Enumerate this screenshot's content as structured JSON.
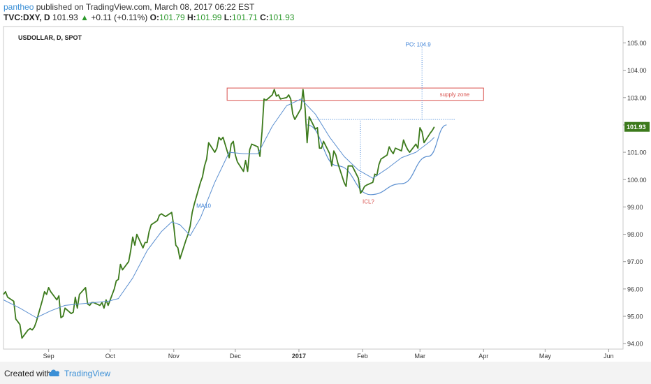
{
  "header": {
    "user": "pantheo",
    "published": "published on TradingView.com, March 08, 2017 06:22 EST",
    "symbol": "TVC:DXY, D",
    "price": "101.93",
    "change": "+0.11 (+0.11%)",
    "o_label": "O:",
    "o_value": "101.79",
    "h_label": "H:",
    "h_value": "101.99",
    "l_label": "L:",
    "l_value": "101.71",
    "c_label": "C:",
    "c_value": "101.93"
  },
  "footer": {
    "created": "Created with",
    "brand": "TradingView"
  },
  "colors": {
    "price_line": "#3c7a1c",
    "ma_line": "#5b8fd0",
    "supply": "#d9534f",
    "label_blue": "#3a7fd6",
    "last_price_bg": "#3c7a1c"
  },
  "chart_data": {
    "type": "line",
    "title": "USDOLLAR, D, SPOT",
    "ylim": [
      93.8,
      105.6
    ],
    "y_ticks": [
      94,
      95,
      96,
      97,
      98,
      99,
      100,
      101,
      102,
      103,
      104,
      105
    ],
    "y_tick_labels": [
      "94.00",
      "95.00",
      "96.00",
      "97.00",
      "98.00",
      "99.00",
      "100.00",
      "101.00",
      "102.00",
      "103.00",
      "104.00",
      "105.00"
    ],
    "x_domain": [
      "2016-08-10",
      "2017-06-08"
    ],
    "x_ticks": [
      {
        "date": "2016-09-01",
        "label": "Sep",
        "bold": false
      },
      {
        "date": "2016-10-01",
        "label": "Oct",
        "bold": false
      },
      {
        "date": "2016-11-01",
        "label": "Nov",
        "bold": false
      },
      {
        "date": "2016-12-01",
        "label": "Dec",
        "bold": false
      },
      {
        "date": "2017-01-01",
        "label": "2017",
        "bold": true
      },
      {
        "date": "2017-02-01",
        "label": "Feb",
        "bold": false
      },
      {
        "date": "2017-03-01",
        "label": "Mar",
        "bold": false
      },
      {
        "date": "2017-04-01",
        "label": "Apr",
        "bold": false
      },
      {
        "date": "2017-05-01",
        "label": "May",
        "bold": false
      },
      {
        "date": "2017-06-01",
        "label": "Jun",
        "bold": false
      }
    ],
    "last_price_label": "101.93",
    "series": [
      {
        "name": "",
        "role": "price",
        "points": [
          [
            "2016-08-10",
            95.8
          ],
          [
            "2016-08-11",
            95.9
          ],
          [
            "2016-08-12",
            95.7
          ],
          [
            "2016-08-15",
            95.55
          ],
          [
            "2016-08-16",
            94.9
          ],
          [
            "2016-08-17",
            94.8
          ],
          [
            "2016-08-18",
            94.7
          ],
          [
            "2016-08-19",
            94.2
          ],
          [
            "2016-08-22",
            94.5
          ],
          [
            "2016-08-23",
            94.55
          ],
          [
            "2016-08-24",
            94.5
          ],
          [
            "2016-08-25",
            94.6
          ],
          [
            "2016-08-26",
            94.8
          ],
          [
            "2016-08-29",
            95.6
          ],
          [
            "2016-08-30",
            95.9
          ],
          [
            "2016-08-31",
            95.8
          ],
          [
            "2016-09-01",
            96.05
          ],
          [
            "2016-09-02",
            95.9
          ],
          [
            "2016-09-05",
            95.6
          ],
          [
            "2016-09-06",
            95.75
          ],
          [
            "2016-09-07",
            94.95
          ],
          [
            "2016-09-08",
            95.0
          ],
          [
            "2016-09-09",
            95.3
          ],
          [
            "2016-09-12",
            95.1
          ],
          [
            "2016-09-13",
            95.15
          ],
          [
            "2016-09-14",
            95.7
          ],
          [
            "2016-09-15",
            95.3
          ],
          [
            "2016-09-16",
            95.8
          ],
          [
            "2016-09-19",
            96.05
          ],
          [
            "2016-09-20",
            95.45
          ],
          [
            "2016-09-21",
            95.4
          ],
          [
            "2016-09-22",
            95.5
          ],
          [
            "2016-09-23",
            95.5
          ],
          [
            "2016-09-26",
            95.4
          ],
          [
            "2016-09-27",
            95.5
          ],
          [
            "2016-09-28",
            95.3
          ],
          [
            "2016-09-29",
            95.6
          ],
          [
            "2016-09-30",
            95.4
          ],
          [
            "2016-10-03",
            96.0
          ],
          [
            "2016-10-04",
            96.3
          ],
          [
            "2016-10-05",
            96.35
          ],
          [
            "2016-10-06",
            96.9
          ],
          [
            "2016-10-07",
            96.7
          ],
          [
            "2016-10-10",
            97.0
          ],
          [
            "2016-10-11",
            97.4
          ],
          [
            "2016-10-12",
            97.9
          ],
          [
            "2016-10-13",
            97.6
          ],
          [
            "2016-10-14",
            98.0
          ],
          [
            "2016-10-17",
            97.5
          ],
          [
            "2016-10-18",
            97.7
          ],
          [
            "2016-10-19",
            97.7
          ],
          [
            "2016-10-20",
            98.1
          ],
          [
            "2016-10-21",
            98.35
          ],
          [
            "2016-10-24",
            98.5
          ],
          [
            "2016-10-25",
            98.7
          ],
          [
            "2016-10-26",
            98.75
          ],
          [
            "2016-10-27",
            98.7
          ],
          [
            "2016-10-28",
            98.65
          ],
          [
            "2016-10-31",
            98.8
          ],
          [
            "2016-11-01",
            98.3
          ],
          [
            "2016-11-02",
            97.6
          ],
          [
            "2016-11-03",
            97.5
          ],
          [
            "2016-11-04",
            97.1
          ],
          [
            "2016-11-07",
            97.8
          ],
          [
            "2016-11-08",
            98.0
          ],
          [
            "2016-11-09",
            98.3
          ],
          [
            "2016-11-10",
            98.8
          ],
          [
            "2016-11-11",
            99.1
          ],
          [
            "2016-11-14",
            99.9
          ],
          [
            "2016-11-15",
            100.1
          ],
          [
            "2016-11-16",
            100.5
          ],
          [
            "2016-11-17",
            100.75
          ],
          [
            "2016-11-18",
            101.35
          ],
          [
            "2016-11-21",
            101.0
          ],
          [
            "2016-11-22",
            101.15
          ],
          [
            "2016-11-23",
            101.55
          ],
          [
            "2016-11-24",
            101.45
          ],
          [
            "2016-11-25",
            101.55
          ],
          [
            "2016-11-28",
            100.8
          ],
          [
            "2016-11-29",
            101.3
          ],
          [
            "2016-11-30",
            101.4
          ],
          [
            "2016-12-01",
            100.9
          ],
          [
            "2016-12-02",
            100.65
          ],
          [
            "2016-12-05",
            100.3
          ],
          [
            "2016-12-06",
            100.7
          ],
          [
            "2016-12-07",
            100.3
          ],
          [
            "2016-12-08",
            101.1
          ],
          [
            "2016-12-09",
            101.3
          ],
          [
            "2016-12-12",
            101.2
          ],
          [
            "2016-12-13",
            100.85
          ],
          [
            "2016-12-14",
            101.75
          ],
          [
            "2016-12-15",
            102.95
          ],
          [
            "2016-12-16",
            102.9
          ],
          [
            "2016-12-19",
            103.1
          ],
          [
            "2016-12-20",
            103.3
          ],
          [
            "2016-12-21",
            103.05
          ],
          [
            "2016-12-22",
            103.1
          ],
          [
            "2016-12-23",
            102.95
          ],
          [
            "2016-12-26",
            103.0
          ],
          [
            "2016-12-27",
            103.1
          ],
          [
            "2016-12-28",
            102.95
          ],
          [
            "2016-12-29",
            102.4
          ],
          [
            "2016-12-30",
            102.2
          ],
          [
            "2017-01-02",
            102.6
          ],
          [
            "2017-01-03",
            103.3
          ],
          [
            "2017-01-04",
            102.6
          ],
          [
            "2017-01-05",
            101.35
          ],
          [
            "2017-01-06",
            102.3
          ],
          [
            "2017-01-09",
            101.85
          ],
          [
            "2017-01-10",
            101.9
          ],
          [
            "2017-01-11",
            101.15
          ],
          [
            "2017-01-12",
            101.15
          ],
          [
            "2017-01-13",
            101.4
          ],
          [
            "2017-01-16",
            100.95
          ],
          [
            "2017-01-17",
            100.5
          ],
          [
            "2017-01-18",
            101.05
          ],
          [
            "2017-01-19",
            100.9
          ],
          [
            "2017-01-20",
            100.6
          ],
          [
            "2017-01-23",
            99.9
          ],
          [
            "2017-01-24",
            99.75
          ],
          [
            "2017-01-25",
            100.5
          ],
          [
            "2017-01-26",
            100.5
          ],
          [
            "2017-01-27",
            100.5
          ],
          [
            "2017-01-30",
            100.05
          ],
          [
            "2017-01-31",
            99.5
          ],
          [
            "2017-02-01",
            99.6
          ],
          [
            "2017-02-02",
            99.75
          ],
          [
            "2017-02-03",
            99.8
          ],
          [
            "2017-02-06",
            99.9
          ],
          [
            "2017-02-07",
            100.2
          ],
          [
            "2017-02-08",
            100.15
          ],
          [
            "2017-02-09",
            100.55
          ],
          [
            "2017-02-10",
            100.75
          ],
          [
            "2017-02-13",
            100.9
          ],
          [
            "2017-02-14",
            101.2
          ],
          [
            "2017-02-15",
            101.05
          ],
          [
            "2017-02-16",
            100.95
          ],
          [
            "2017-02-17",
            101.15
          ],
          [
            "2017-02-20",
            101.05
          ],
          [
            "2017-02-21",
            101.45
          ],
          [
            "2017-02-22",
            101.25
          ],
          [
            "2017-02-23",
            101.1
          ],
          [
            "2017-02-24",
            101.0
          ],
          [
            "2017-02-27",
            101.3
          ],
          [
            "2017-02-28",
            101.15
          ],
          [
            "2017-03-01",
            101.9
          ],
          [
            "2017-03-02",
            101.75
          ],
          [
            "2017-03-03",
            101.35
          ],
          [
            "2017-03-06",
            101.7
          ],
          [
            "2017-03-07",
            101.8
          ],
          [
            "2017-03-08",
            101.93
          ]
        ]
      },
      {
        "name": "MA10",
        "role": "ma",
        "points": [
          [
            "2016-08-10",
            95.6
          ],
          [
            "2016-08-18",
            95.3
          ],
          [
            "2016-08-26",
            94.95
          ],
          [
            "2016-09-02",
            95.2
          ],
          [
            "2016-09-09",
            95.4
          ],
          [
            "2016-09-16",
            95.45
          ],
          [
            "2016-09-23",
            95.5
          ],
          [
            "2016-09-30",
            95.55
          ],
          [
            "2016-10-05",
            95.65
          ],
          [
            "2016-10-12",
            96.4
          ],
          [
            "2016-10-19",
            97.4
          ],
          [
            "2016-10-26",
            98.1
          ],
          [
            "2016-10-31",
            98.45
          ],
          [
            "2016-11-04",
            98.35
          ],
          [
            "2016-11-09",
            97.95
          ],
          [
            "2016-11-14",
            98.6
          ],
          [
            "2016-11-21",
            99.9
          ],
          [
            "2016-11-28",
            101.0
          ],
          [
            "2016-12-05",
            100.95
          ],
          [
            "2016-12-12",
            100.95
          ],
          [
            "2016-12-19",
            101.95
          ],
          [
            "2016-12-26",
            102.7
          ],
          [
            "2017-01-02",
            102.95
          ],
          [
            "2017-01-09",
            102.4
          ],
          [
            "2017-01-16",
            101.55
          ],
          [
            "2017-01-23",
            100.85
          ],
          [
            "2017-01-30",
            100.35
          ],
          [
            "2017-02-06",
            100.05
          ],
          [
            "2017-02-13",
            100.4
          ],
          [
            "2017-02-20",
            100.8
          ],
          [
            "2017-02-27",
            101.0
          ],
          [
            "2017-03-06",
            101.4
          ],
          [
            "2017-03-08",
            101.55
          ]
        ]
      }
    ],
    "annotations": {
      "supply_zone": {
        "label": "supply zone",
        "date_from": "2016-11-27",
        "date_to": "2017-04-01",
        "y_low": 102.9,
        "y_high": 103.35
      },
      "ma_label": {
        "label": "MA10",
        "date": "2016-11-12",
        "y": 99.05
      },
      "po_label": {
        "label": "PO: 104.9",
        "date": "2017-02-22",
        "y": 104.95
      },
      "icl_label": {
        "label": "ICL?",
        "date": "2017-02-01",
        "y": 99.2
      },
      "po_vline": {
        "date": "2017-03-02",
        "y_from": 102.2,
        "y_to": 104.85
      },
      "icl_vline": {
        "date": "2017-01-31",
        "y_from": 99.6,
        "y_to": 102.2
      },
      "neck_hline": {
        "date_from": "2017-01-05",
        "date_to": "2017-03-18",
        "y": 102.2
      },
      "cup_curve": [
        [
          "2017-01-05",
          102.0
        ],
        [
          "2017-01-20",
          100.5
        ],
        [
          "2017-02-05",
          99.45
        ],
        [
          "2017-02-20",
          99.85
        ],
        [
          "2017-03-05",
          100.85
        ],
        [
          "2017-03-14",
          102.0
        ]
      ]
    }
  }
}
